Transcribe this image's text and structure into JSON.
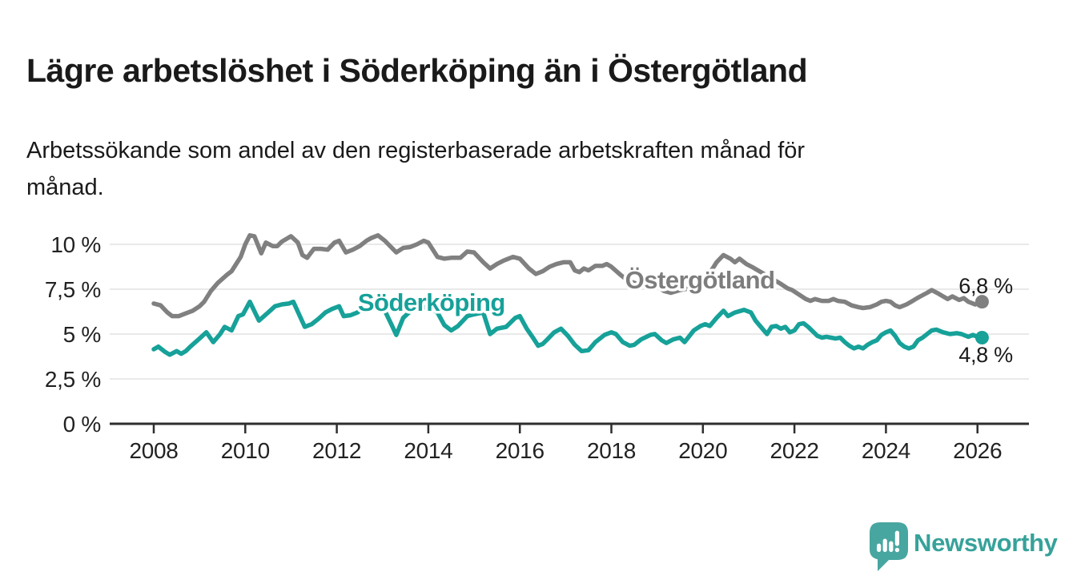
{
  "branding": {
    "wordmark": "Newsworthy",
    "wordmark_color": "#36a29a",
    "logo_icon": "speech-bubble-bar-chart-icon",
    "logo_color": "#48a6a0"
  },
  "chart_data": {
    "type": "line",
    "title": "Lägre arbetslöshet i Söderköping än i Östergötland",
    "subtitle": "Arbetssökande som andel av den registerbaserade arbetskraften månad för\nmånad.",
    "legend_position": "inline-labels-on-lines",
    "grid": "horizontal-only",
    "x_axis": {
      "ticks": [
        2008,
        2010,
        2012,
        2014,
        2016,
        2018,
        2020,
        2022,
        2024,
        2026
      ],
      "range": [
        2007.06,
        2027.14
      ]
    },
    "y_axis": {
      "unit": "%",
      "range": [
        0,
        10.7
      ],
      "gridlines": [
        2.5,
        5,
        7.5,
        10
      ],
      "ticks": [
        {
          "value": 0,
          "label": "0 %"
        },
        {
          "value": 2.5,
          "label": "2,5 %"
        },
        {
          "value": 5,
          "label": "5 %"
        },
        {
          "value": 7.5,
          "label": "7,5 %"
        },
        {
          "value": 10,
          "label": "10 %"
        }
      ]
    },
    "series": [
      {
        "name": "Östergötland",
        "color": "#808080",
        "label_color": "#7d7d7d",
        "end_label": "6,8 %",
        "end_value": 6.8,
        "label_at": [
          2018.3,
          7.55
        ],
        "end_label_at": [
          2025.59,
          7.28
        ],
        "points": [
          [
            2008.0,
            6.7
          ],
          [
            2008.15,
            6.6
          ],
          [
            2008.3,
            6.2
          ],
          [
            2008.4,
            6.0
          ],
          [
            2008.55,
            6.0
          ],
          [
            2008.7,
            6.15
          ],
          [
            2008.85,
            6.3
          ],
          [
            2009.0,
            6.55
          ],
          [
            2009.1,
            6.8
          ],
          [
            2009.25,
            7.4
          ],
          [
            2009.4,
            7.85
          ],
          [
            2009.6,
            8.3
          ],
          [
            2009.7,
            8.5
          ],
          [
            2009.8,
            8.9
          ],
          [
            2009.9,
            9.3
          ],
          [
            2010.0,
            10.0
          ],
          [
            2010.1,
            10.5
          ],
          [
            2010.2,
            10.45
          ],
          [
            2010.35,
            9.5
          ],
          [
            2010.45,
            10.1
          ],
          [
            2010.6,
            9.9
          ],
          [
            2010.7,
            9.9
          ],
          [
            2010.8,
            10.15
          ],
          [
            2010.9,
            10.3
          ],
          [
            2011.0,
            10.45
          ],
          [
            2011.15,
            10.1
          ],
          [
            2011.25,
            9.4
          ],
          [
            2011.35,
            9.25
          ],
          [
            2011.5,
            9.75
          ],
          [
            2011.65,
            9.75
          ],
          [
            2011.8,
            9.7
          ],
          [
            2011.95,
            10.1
          ],
          [
            2012.05,
            10.2
          ],
          [
            2012.2,
            9.55
          ],
          [
            2012.35,
            9.7
          ],
          [
            2012.5,
            9.9
          ],
          [
            2012.65,
            10.2
          ],
          [
            2012.75,
            10.35
          ],
          [
            2012.9,
            10.5
          ],
          [
            2013.05,
            10.2
          ],
          [
            2013.3,
            9.55
          ],
          [
            2013.45,
            9.8
          ],
          [
            2013.6,
            9.85
          ],
          [
            2013.75,
            10.0
          ],
          [
            2013.9,
            10.2
          ],
          [
            2014.0,
            10.1
          ],
          [
            2014.2,
            9.3
          ],
          [
            2014.35,
            9.2
          ],
          [
            2014.5,
            9.25
          ],
          [
            2014.7,
            9.25
          ],
          [
            2014.85,
            9.6
          ],
          [
            2015.0,
            9.55
          ],
          [
            2015.2,
            9.0
          ],
          [
            2015.35,
            8.65
          ],
          [
            2015.5,
            8.9
          ],
          [
            2015.65,
            9.1
          ],
          [
            2015.85,
            9.3
          ],
          [
            2016.0,
            9.2
          ],
          [
            2016.2,
            8.65
          ],
          [
            2016.35,
            8.35
          ],
          [
            2016.5,
            8.5
          ],
          [
            2016.65,
            8.75
          ],
          [
            2016.8,
            8.9
          ],
          [
            2016.95,
            9.0
          ],
          [
            2017.1,
            9.0
          ],
          [
            2017.2,
            8.55
          ],
          [
            2017.3,
            8.45
          ],
          [
            2017.4,
            8.65
          ],
          [
            2017.5,
            8.55
          ],
          [
            2017.65,
            8.8
          ],
          [
            2017.8,
            8.8
          ],
          [
            2017.9,
            8.9
          ],
          [
            2018.0,
            8.75
          ],
          [
            2018.2,
            8.3
          ],
          [
            2018.35,
            8.0
          ],
          [
            2018.5,
            7.85
          ],
          [
            2018.65,
            7.75
          ],
          [
            2018.8,
            7.8
          ],
          [
            2019.0,
            7.65
          ],
          [
            2019.15,
            7.4
          ],
          [
            2019.3,
            7.3
          ],
          [
            2019.5,
            7.45
          ],
          [
            2019.7,
            7.55
          ],
          [
            2019.85,
            7.7
          ],
          [
            2020.0,
            7.95
          ],
          [
            2020.15,
            8.4
          ],
          [
            2020.3,
            9.0
          ],
          [
            2020.45,
            9.4
          ],
          [
            2020.6,
            9.2
          ],
          [
            2020.7,
            9.0
          ],
          [
            2020.8,
            9.2
          ],
          [
            2020.95,
            8.9
          ],
          [
            2021.1,
            8.7
          ],
          [
            2021.3,
            8.4
          ],
          [
            2021.5,
            8.1
          ],
          [
            2021.7,
            7.8
          ],
          [
            2021.85,
            7.55
          ],
          [
            2021.95,
            7.45
          ],
          [
            2022.1,
            7.2
          ],
          [
            2022.25,
            6.95
          ],
          [
            2022.35,
            6.85
          ],
          [
            2022.45,
            6.95
          ],
          [
            2022.6,
            6.85
          ],
          [
            2022.75,
            6.85
          ],
          [
            2022.85,
            6.95
          ],
          [
            2022.95,
            6.85
          ],
          [
            2023.1,
            6.8
          ],
          [
            2023.25,
            6.6
          ],
          [
            2023.4,
            6.5
          ],
          [
            2023.5,
            6.45
          ],
          [
            2023.65,
            6.5
          ],
          [
            2023.8,
            6.65
          ],
          [
            2023.9,
            6.8
          ],
          [
            2024.0,
            6.85
          ],
          [
            2024.1,
            6.8
          ],
          [
            2024.2,
            6.6
          ],
          [
            2024.3,
            6.5
          ],
          [
            2024.45,
            6.65
          ],
          [
            2024.55,
            6.8
          ],
          [
            2024.65,
            6.95
          ],
          [
            2024.75,
            7.1
          ],
          [
            2024.9,
            7.3
          ],
          [
            2025.0,
            7.45
          ],
          [
            2025.15,
            7.25
          ],
          [
            2025.25,
            7.1
          ],
          [
            2025.35,
            6.95
          ],
          [
            2025.45,
            7.1
          ],
          [
            2025.6,
            6.9
          ],
          [
            2025.7,
            7.0
          ],
          [
            2025.8,
            6.8
          ],
          [
            2025.95,
            6.65
          ],
          [
            2026.1,
            6.8
          ]
        ]
      },
      {
        "name": "Söderköping",
        "color": "#16a199",
        "label_color": "#16a199",
        "end_label": "4,8 %",
        "end_value": 4.8,
        "label_at": [
          2012.46,
          6.3
        ],
        "end_label_at": [
          2025.59,
          3.44
        ],
        "points": [
          [
            2008.0,
            4.15
          ],
          [
            2008.1,
            4.3
          ],
          [
            2008.25,
            4.0
          ],
          [
            2008.35,
            3.85
          ],
          [
            2008.5,
            4.05
          ],
          [
            2008.6,
            3.9
          ],
          [
            2008.7,
            4.05
          ],
          [
            2008.8,
            4.3
          ],
          [
            2009.0,
            4.75
          ],
          [
            2009.15,
            5.1
          ],
          [
            2009.3,
            4.55
          ],
          [
            2009.45,
            5.0
          ],
          [
            2009.55,
            5.4
          ],
          [
            2009.7,
            5.2
          ],
          [
            2009.85,
            6.0
          ],
          [
            2009.95,
            6.1
          ],
          [
            2010.1,
            6.8
          ],
          [
            2010.3,
            5.75
          ],
          [
            2010.5,
            6.2
          ],
          [
            2010.65,
            6.55
          ],
          [
            2010.8,
            6.65
          ],
          [
            2010.95,
            6.7
          ],
          [
            2011.05,
            6.8
          ],
          [
            2011.3,
            5.4
          ],
          [
            2011.45,
            5.55
          ],
          [
            2011.6,
            5.85
          ],
          [
            2011.75,
            6.2
          ],
          [
            2011.9,
            6.4
          ],
          [
            2012.05,
            6.55
          ],
          [
            2012.15,
            6.0
          ],
          [
            2012.3,
            6.05
          ],
          [
            2012.45,
            6.2
          ],
          [
            2012.6,
            6.5
          ],
          [
            2012.75,
            6.6
          ],
          [
            2012.9,
            6.5
          ],
          [
            2013.05,
            6.3
          ],
          [
            2013.2,
            5.5
          ],
          [
            2013.3,
            4.95
          ],
          [
            2013.45,
            5.9
          ],
          [
            2013.6,
            6.25
          ],
          [
            2013.75,
            6.45
          ],
          [
            2013.9,
            6.5
          ],
          [
            2014.05,
            6.45
          ],
          [
            2014.2,
            6.2
          ],
          [
            2014.35,
            5.5
          ],
          [
            2014.5,
            5.2
          ],
          [
            2014.65,
            5.45
          ],
          [
            2014.85,
            6.0
          ],
          [
            2015.0,
            6.1
          ],
          [
            2015.2,
            6.2
          ],
          [
            2015.35,
            5.0
          ],
          [
            2015.5,
            5.3
          ],
          [
            2015.7,
            5.4
          ],
          [
            2015.9,
            5.9
          ],
          [
            2016.0,
            6.0
          ],
          [
            2016.15,
            5.3
          ],
          [
            2016.3,
            4.75
          ],
          [
            2016.4,
            4.35
          ],
          [
            2016.5,
            4.45
          ],
          [
            2016.6,
            4.7
          ],
          [
            2016.75,
            5.1
          ],
          [
            2016.9,
            5.3
          ],
          [
            2017.05,
            4.9
          ],
          [
            2017.2,
            4.4
          ],
          [
            2017.35,
            4.05
          ],
          [
            2017.5,
            4.1
          ],
          [
            2017.65,
            4.55
          ],
          [
            2017.85,
            4.95
          ],
          [
            2018.0,
            5.1
          ],
          [
            2018.1,
            5.0
          ],
          [
            2018.25,
            4.55
          ],
          [
            2018.4,
            4.35
          ],
          [
            2018.5,
            4.4
          ],
          [
            2018.65,
            4.7
          ],
          [
            2018.85,
            4.95
          ],
          [
            2018.95,
            5.0
          ],
          [
            2019.1,
            4.65
          ],
          [
            2019.2,
            4.5
          ],
          [
            2019.35,
            4.7
          ],
          [
            2019.5,
            4.8
          ],
          [
            2019.6,
            4.55
          ],
          [
            2019.8,
            5.2
          ],
          [
            2019.95,
            5.45
          ],
          [
            2020.05,
            5.55
          ],
          [
            2020.15,
            5.45
          ],
          [
            2020.3,
            5.9
          ],
          [
            2020.45,
            6.3
          ],
          [
            2020.55,
            6.0
          ],
          [
            2020.7,
            6.2
          ],
          [
            2020.9,
            6.35
          ],
          [
            2021.05,
            6.2
          ],
          [
            2021.15,
            5.75
          ],
          [
            2021.3,
            5.3
          ],
          [
            2021.4,
            5.0
          ],
          [
            2021.5,
            5.4
          ],
          [
            2021.6,
            5.45
          ],
          [
            2021.7,
            5.3
          ],
          [
            2021.8,
            5.4
          ],
          [
            2021.9,
            5.1
          ],
          [
            2022.0,
            5.2
          ],
          [
            2022.1,
            5.55
          ],
          [
            2022.2,
            5.6
          ],
          [
            2022.3,
            5.4
          ],
          [
            2022.4,
            5.15
          ],
          [
            2022.5,
            4.9
          ],
          [
            2022.6,
            4.8
          ],
          [
            2022.7,
            4.85
          ],
          [
            2022.8,
            4.8
          ],
          [
            2022.9,
            4.75
          ],
          [
            2023.0,
            4.8
          ],
          [
            2023.1,
            4.55
          ],
          [
            2023.2,
            4.35
          ],
          [
            2023.3,
            4.2
          ],
          [
            2023.4,
            4.3
          ],
          [
            2023.5,
            4.2
          ],
          [
            2023.6,
            4.4
          ],
          [
            2023.7,
            4.55
          ],
          [
            2023.8,
            4.65
          ],
          [
            2023.9,
            4.95
          ],
          [
            2024.0,
            5.1
          ],
          [
            2024.1,
            5.2
          ],
          [
            2024.2,
            4.9
          ],
          [
            2024.3,
            4.5
          ],
          [
            2024.4,
            4.3
          ],
          [
            2024.5,
            4.2
          ],
          [
            2024.6,
            4.3
          ],
          [
            2024.7,
            4.65
          ],
          [
            2024.8,
            4.8
          ],
          [
            2024.9,
            5.0
          ],
          [
            2025.0,
            5.2
          ],
          [
            2025.1,
            5.25
          ],
          [
            2025.25,
            5.1
          ],
          [
            2025.4,
            5.0
          ],
          [
            2025.55,
            5.05
          ],
          [
            2025.65,
            5.0
          ],
          [
            2025.8,
            4.85
          ],
          [
            2025.9,
            4.95
          ],
          [
            2026.0,
            4.85
          ],
          [
            2026.1,
            4.8
          ]
        ]
      }
    ]
  }
}
